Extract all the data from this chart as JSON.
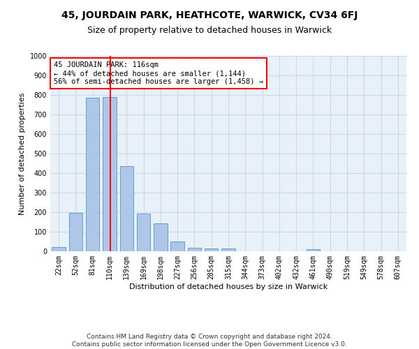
{
  "title_line1": "45, JOURDAIN PARK, HEATHCOTE, WARWICK, CV34 6FJ",
  "title_line2": "Size of property relative to detached houses in Warwick",
  "xlabel": "Distribution of detached houses by size in Warwick",
  "ylabel": "Number of detached properties",
  "bar_labels": [
    "22sqm",
    "52sqm",
    "81sqm",
    "110sqm",
    "139sqm",
    "169sqm",
    "198sqm",
    "227sqm",
    "256sqm",
    "285sqm",
    "315sqm",
    "344sqm",
    "373sqm",
    "402sqm",
    "432sqm",
    "461sqm",
    "490sqm",
    "519sqm",
    "549sqm",
    "578sqm",
    "607sqm"
  ],
  "bar_values": [
    20,
    197,
    785,
    790,
    435,
    193,
    143,
    50,
    17,
    13,
    13,
    0,
    0,
    0,
    0,
    10,
    0,
    0,
    0,
    0,
    0
  ],
  "bar_color": "#aec6e8",
  "bar_edge_color": "#5a9fd4",
  "grid_color": "#c8daea",
  "background_color": "#e8f0f8",
  "vline_x": 3.05,
  "vline_color": "red",
  "annotation_text": "45 JOURDAIN PARK: 116sqm\n← 44% of detached houses are smaller (1,144)\n56% of semi-detached houses are larger (1,458) →",
  "annotation_box_color": "white",
  "annotation_border_color": "red",
  "ylim": [
    0,
    1000
  ],
  "yticks": [
    0,
    100,
    200,
    300,
    400,
    500,
    600,
    700,
    800,
    900,
    1000
  ],
  "footer_line1": "Contains HM Land Registry data © Crown copyright and database right 2024.",
  "footer_line2": "Contains public sector information licensed under the Open Government Licence v3.0.",
  "title_fontsize": 10,
  "subtitle_fontsize": 9,
  "axis_label_fontsize": 8,
  "tick_fontsize": 7,
  "annotation_fontsize": 7.5,
  "footer_fontsize": 6.5
}
